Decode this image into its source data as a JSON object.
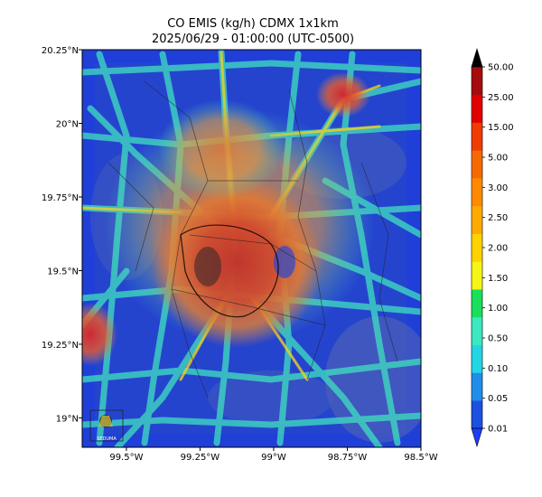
{
  "title": {
    "line1": "CO EMIS (kg/h) CDMX 1x1km",
    "line2": "2025/06/29 - 01:00:00 (UTC-0500)"
  },
  "map": {
    "lon_range": [
      -99.65,
      -98.5
    ],
    "lat_range": [
      18.9,
      20.25
    ],
    "x_ticks": [
      {
        "value": -99.5,
        "label": "99.5°W"
      },
      {
        "value": -99.25,
        "label": "99.25°W"
      },
      {
        "value": -99.0,
        "label": "99°W"
      },
      {
        "value": -98.75,
        "label": "98.75°W"
      },
      {
        "value": -98.5,
        "label": "98.5°W"
      }
    ],
    "y_ticks": [
      {
        "value": 20.25,
        "label": "20.25°N"
      },
      {
        "value": 20.0,
        "label": "20°N"
      },
      {
        "value": 19.75,
        "label": "19.75°N"
      },
      {
        "value": 19.5,
        "label": "19.5°N"
      },
      {
        "value": 19.25,
        "label": "19.25°N"
      },
      {
        "value": 19.0,
        "label": "19°N"
      }
    ],
    "logo_label": "SEDUMA"
  },
  "colorbar": {
    "levels": [
      "0.01",
      "0.05",
      "0.10",
      "0.50",
      "1.00",
      "1.50",
      "2.00",
      "2.50",
      "3.00",
      "5.00",
      "15.00",
      "25.00",
      "50.00"
    ],
    "colors": [
      "#1e50e0",
      "#1f8ee8",
      "#22d6e6",
      "#3be8c0",
      "#18e05a",
      "#f5f516",
      "#ffd200",
      "#ffaa00",
      "#ff8a00",
      "#f56a00",
      "#f03c00",
      "#e00000",
      "#a50d0d"
    ],
    "under_color": "#1e3cff",
    "over_color": "#000000"
  }
}
